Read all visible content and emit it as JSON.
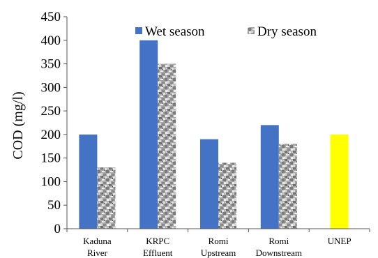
{
  "chart_data": {
    "type": "bar",
    "title": "",
    "xlabel": "",
    "ylabel": "COD (mg/l)",
    "ylim": [
      0,
      450
    ],
    "yticks": [
      0,
      50,
      100,
      150,
      200,
      250,
      300,
      350,
      400,
      450
    ],
    "grid": false,
    "legend_position": "top",
    "categories": [
      [
        "Kaduna",
        "River"
      ],
      [
        "KRPC",
        "Effluent"
      ],
      [
        "Romi",
        "Upstream"
      ],
      [
        "Romi",
        "Downstream"
      ],
      [
        "UNEP"
      ]
    ],
    "series": [
      {
        "name": "Wet season",
        "color": "#4472C4",
        "pattern": "solid",
        "values": [
          200,
          400,
          190,
          220,
          null
        ]
      },
      {
        "name": "Dry season",
        "color": "#9a9a9a",
        "pattern": "granite",
        "values": [
          130,
          350,
          140,
          180,
          null
        ]
      }
    ],
    "standard": {
      "category_index": 4,
      "value": 200,
      "color": "#FFFF00"
    }
  }
}
